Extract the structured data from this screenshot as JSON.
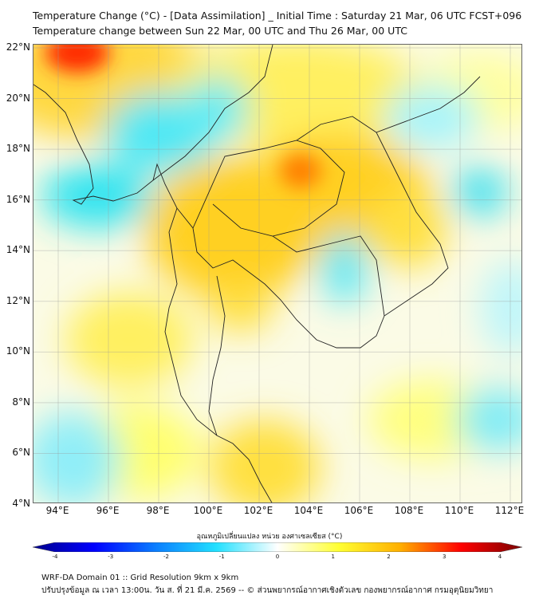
{
  "title": {
    "line1": "Temperature Change (°C) - [Data Assimilation] _ Initial Time : Saturday 21 Mar, 06 UTC FCST+096",
    "line2": "Temperature change between Sun 22 Mar, 00 UTC and Thu 26 Mar, 00 UTC"
  },
  "map": {
    "lat_labels": [
      "22°N",
      "20°N",
      "18°N",
      "16°N",
      "14°N",
      "12°N",
      "10°N",
      "8°N",
      "6°N",
      "4°N"
    ],
    "lon_labels": [
      "94°E",
      "96°E",
      "98°E",
      "100°E",
      "102°E",
      "104°E",
      "106°E",
      "108°E",
      "110°E",
      "112°E"
    ]
  },
  "colorbar": {
    "title": "อุณหภูมิเปลี่ยนแปลง หน่วย องศาเซลเซียส (°C)",
    "ticks": [
      "-4",
      "-3",
      "-2",
      "-1",
      "0",
      "1",
      "2",
      "3",
      "4"
    ],
    "colors": [
      "#00008b",
      "#0000ff",
      "#0a7dff",
      "#22e0ff",
      "#ffffff",
      "#ffff33",
      "#ffb000",
      "#ff0000",
      "#7a0000"
    ]
  },
  "footer": {
    "line1": "WRF-DA Domain 01 :: Grid Resolution 9km x 9km",
    "line2": "ปรับปรุงข้อมูล ณ เวลา 13:00น. วัน ส. ที่ 21 มี.ค. 2569 -- © ส่วนพยากรณ์อากาศเชิงตัวเลข กองพยากรณ์อากาศ กรมอุตุนิยมวิทยา"
  }
}
